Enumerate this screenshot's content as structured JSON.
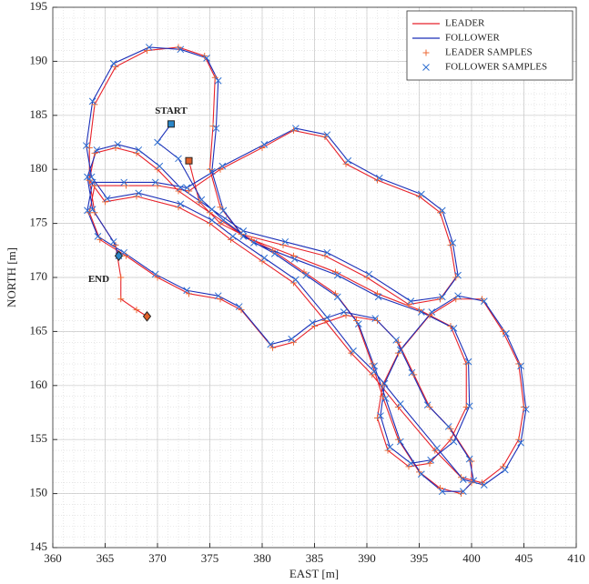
{
  "chart_data": {
    "type": "line",
    "xlabel": "EAST [m]",
    "ylabel": "NORTH [m]",
    "xlim": [
      360,
      410
    ],
    "ylim": [
      145,
      195
    ],
    "xticks": [
      360,
      365,
      370,
      375,
      380,
      385,
      390,
      395,
      400,
      405,
      410
    ],
    "yticks": [
      145,
      150,
      155,
      160,
      165,
      170,
      175,
      180,
      185,
      190,
      195
    ],
    "grid": true,
    "minor_grid": true,
    "legend": "upper right",
    "series": [
      {
        "name": "LEADER",
        "type": "line",
        "color": "#e8222a",
        "x": [
          373,
          374,
          376,
          379,
          383,
          387,
          391,
          395,
          398,
          399.5,
          399.5,
          398,
          396,
          394,
          392,
          391,
          391.5,
          393,
          396,
          398.5,
          401,
          403,
          404.5,
          405,
          404.5,
          403,
          401,
          399,
          396.5,
          393,
          390.5,
          388.5,
          386,
          383,
          380,
          377,
          375,
          372,
          368,
          365,
          363.5,
          363.5,
          364,
          366,
          369,
          372,
          374.5,
          375.5,
          375.3,
          375,
          376,
          378,
          381,
          384,
          387,
          389,
          390.5,
          391.5,
          393,
          395,
          397,
          399,
          400,
          400,
          398,
          396,
          394.5,
          393,
          391,
          388,
          385,
          383,
          381,
          378,
          376,
          373,
          370,
          367,
          364.5,
          363.5,
          364,
          367,
          370,
          373,
          376,
          380,
          383,
          386,
          388,
          391,
          395,
          397,
          398,
          398.5,
          397,
          394,
          390,
          386,
          382,
          378,
          375,
          372,
          370,
          368,
          366,
          364,
          363.5,
          364,
          366,
          366.5,
          366.5,
          368,
          369
        ],
        "values": [
          180.8,
          177,
          175,
          173.5,
          172,
          170.5,
          168.5,
          167,
          165.5,
          162,
          158,
          155,
          152.8,
          152.5,
          154,
          157,
          160,
          163,
          166.5,
          168,
          168,
          165,
          162,
          158,
          155,
          152.5,
          151,
          151.5,
          154,
          158,
          161,
          163,
          166,
          169.5,
          171.5,
          173.5,
          175,
          176.5,
          177.5,
          177,
          179,
          182,
          186,
          189.5,
          191,
          191.3,
          190.5,
          188.5,
          184,
          180,
          176.5,
          174,
          172.5,
          170.5,
          168.5,
          166,
          162,
          159,
          155,
          152,
          150.5,
          150,
          151,
          153,
          156,
          158,
          161,
          164,
          166,
          166.5,
          165.5,
          164,
          163.5,
          167,
          168,
          168.5,
          170,
          172,
          173.5,
          176,
          178.5,
          178.5,
          178.5,
          178,
          180,
          182,
          183.6,
          183,
          180.5,
          179,
          177.5,
          176,
          173,
          170,
          168,
          167.5,
          170,
          172,
          173,
          174,
          176,
          178,
          180,
          181.5,
          182,
          181.5,
          179,
          176,
          173,
          170,
          168,
          167,
          166.4
        ]
      },
      {
        "name": "FOLLOWER",
        "type": "line",
        "color": "#1a2fb8",
        "x": [
          371.3,
          370,
          372,
          374.2,
          376.3,
          379.2,
          383.1,
          387.2,
          391.1,
          395.2,
          398.3,
          399.7,
          399.8,
          398.3,
          396.1,
          394.2,
          392.2,
          391.3,
          391.7,
          393.2,
          396.2,
          398.7,
          401.2,
          403.3,
          404.7,
          405.2,
          404.7,
          403.2,
          401.2,
          399.2,
          396.7,
          393.2,
          390.7,
          388.7,
          386.2,
          383.2,
          380.2,
          377.2,
          375.2,
          372.2,
          368.2,
          365.2,
          363.7,
          363.2,
          363.8,
          365.8,
          369.2,
          372.2,
          374.7,
          375.8,
          375.6,
          375.2,
          376.3,
          378.2,
          381.2,
          384.2,
          387.2,
          389.2,
          390.7,
          391.8,
          393.2,
          395.2,
          397.2,
          399.2,
          400.2,
          399.8,
          397.8,
          395.8,
          394.3,
          392.8,
          390.8,
          387.8,
          384.8,
          382.8,
          380.8,
          377.8,
          375.8,
          372.8,
          369.8,
          366.8,
          364.3,
          363.3,
          363.8,
          366.8,
          369.8,
          372.8,
          376.2,
          380.2,
          383.2,
          386.2,
          388.2,
          391.2,
          395.2,
          397.2,
          398.2,
          398.7,
          397.2,
          394.2,
          390.2,
          386.2,
          382.2,
          378.2,
          375.2,
          372.2,
          370.2,
          368.2,
          366.2,
          364.2,
          363.3,
          363.8,
          365.8,
          366.3
        ],
        "values": [
          184.2,
          182.5,
          181,
          177.2,
          175.3,
          173.2,
          171.7,
          170.2,
          168.2,
          166.8,
          165.3,
          162.2,
          158.1,
          154.8,
          153.1,
          152.8,
          154.3,
          157.2,
          160.2,
          163.3,
          166.8,
          168.3,
          167.8,
          164.8,
          161.8,
          157.8,
          154.7,
          152.2,
          150.8,
          151.3,
          154.2,
          158.3,
          161.3,
          163.2,
          166.3,
          169.8,
          171.8,
          173.8,
          175.3,
          176.8,
          177.8,
          177.3,
          179.3,
          182.2,
          186.3,
          189.8,
          191.3,
          191.1,
          190.3,
          188.2,
          183.8,
          179.8,
          176.2,
          173.8,
          172.2,
          170.2,
          168.2,
          165.7,
          161.8,
          158.8,
          154.8,
          151.8,
          150.2,
          150.2,
          151.2,
          153.2,
          156.2,
          158.2,
          161.2,
          164.2,
          166.2,
          166.8,
          165.8,
          164.3,
          163.8,
          167.3,
          168.3,
          168.8,
          170.3,
          172.3,
          173.8,
          176.2,
          178.8,
          178.8,
          178.8,
          178.3,
          180.3,
          182.3,
          183.8,
          183.2,
          180.8,
          179.2,
          177.7,
          176.2,
          173.2,
          170.2,
          168.2,
          167.8,
          170.3,
          172.3,
          173.3,
          174.3,
          176.3,
          178.3,
          180.3,
          181.8,
          182.3,
          181.8,
          179.3,
          176.3,
          173.3,
          172
        ]
      },
      {
        "name": "LEADER SAMPLES",
        "type": "scatter",
        "marker": "+",
        "color": "#ec6a35",
        "x": [
          373,
          374,
          376,
          379,
          383,
          387,
          391,
          395,
          398,
          399.5,
          399.5,
          398,
          396,
          394,
          392,
          391,
          391.5,
          393,
          396,
          398.5,
          401,
          403,
          404.5,
          405,
          404.5,
          403,
          401,
          399,
          396.5,
          393,
          390.5,
          388.5,
          386,
          383,
          380,
          377,
          375,
          372,
          368,
          365,
          363.5,
          363.5,
          364,
          366,
          369,
          372,
          374.5,
          375.5,
          375.3,
          375,
          376,
          378,
          381,
          384,
          387,
          389,
          390.5,
          391.5,
          393,
          395,
          397,
          399,
          400,
          400,
          398,
          396,
          394.5,
          393,
          391,
          388,
          385,
          383,
          381,
          378,
          376,
          373,
          370,
          367,
          364.5,
          363.5,
          364,
          367,
          370,
          373,
          376,
          380,
          383,
          386,
          388,
          391,
          395,
          397,
          398,
          398.5,
          397,
          394,
          390,
          386,
          382,
          378,
          375,
          372,
          370,
          368,
          366,
          364,
          363.5,
          364,
          366,
          366.5,
          366.5,
          368,
          369
        ],
        "values": [
          180.8,
          177,
          175,
          173.5,
          172,
          170.5,
          168.5,
          167,
          165.5,
          162,
          158,
          155,
          152.8,
          152.5,
          154,
          157,
          160,
          163,
          166.5,
          168,
          168,
          165,
          162,
          158,
          155,
          152.5,
          151,
          151.5,
          154,
          158,
          161,
          163,
          166,
          169.5,
          171.5,
          173.5,
          175,
          176.5,
          177.5,
          177,
          179,
          182,
          186,
          189.5,
          191,
          191.3,
          190.5,
          188.5,
          184,
          180,
          176.5,
          174,
          172.5,
          170.5,
          168.5,
          166,
          162,
          159,
          155,
          152,
          150.5,
          150,
          151,
          153,
          156,
          158,
          161,
          164,
          166,
          166.5,
          165.5,
          164,
          163.5,
          167,
          168,
          168.5,
          170,
          172,
          173.5,
          176,
          178.5,
          178.5,
          178.5,
          178,
          180,
          182,
          183.6,
          183,
          180.5,
          179,
          177.5,
          176,
          173,
          170,
          168,
          167.5,
          170,
          172,
          173,
          174,
          176,
          178,
          180,
          181.5,
          182,
          181.5,
          179,
          176,
          173,
          170,
          168,
          167,
          166.4
        ]
      },
      {
        "name": "FOLLOWER SAMPLES",
        "type": "scatter",
        "marker": "x",
        "color": "#2f6fd0",
        "x": [
          371.3,
          370,
          372,
          374.2,
          376.3,
          379.2,
          383.1,
          387.2,
          391.1,
          395.2,
          398.3,
          399.7,
          399.8,
          398.3,
          396.1,
          394.2,
          392.2,
          391.3,
          391.7,
          393.2,
          396.2,
          398.7,
          401.2,
          403.3,
          404.7,
          405.2,
          404.7,
          403.2,
          401.2,
          399.2,
          396.7,
          393.2,
          390.7,
          388.7,
          386.2,
          383.2,
          380.2,
          377.2,
          375.2,
          372.2,
          368.2,
          365.2,
          363.7,
          363.2,
          363.8,
          365.8,
          369.2,
          372.2,
          374.7,
          375.8,
          375.6,
          375.2,
          376.3,
          378.2,
          381.2,
          384.2,
          387.2,
          389.2,
          390.7,
          391.8,
          393.2,
          395.2,
          397.2,
          399.2,
          400.2,
          399.8,
          397.8,
          395.8,
          394.3,
          392.8,
          390.8,
          387.8,
          384.8,
          382.8,
          380.8,
          377.8,
          375.8,
          372.8,
          369.8,
          366.8,
          364.3,
          363.3,
          363.8,
          366.8,
          369.8,
          372.8,
          376.2,
          380.2,
          383.2,
          386.2,
          388.2,
          391.2,
          395.2,
          397.2,
          398.2,
          398.7,
          397.2,
          394.2,
          390.2,
          386.2,
          382.2,
          378.2,
          375.2,
          372.2,
          370.2,
          368.2,
          366.2,
          364.2,
          363.3,
          363.8,
          365.8,
          366.3
        ],
        "values": [
          184.2,
          182.5,
          181,
          177.2,
          175.3,
          173.2,
          171.7,
          170.2,
          168.2,
          166.8,
          165.3,
          162.2,
          158.1,
          154.8,
          153.1,
          152.8,
          154.3,
          157.2,
          160.2,
          163.3,
          166.8,
          168.3,
          167.8,
          164.8,
          161.8,
          157.8,
          154.7,
          152.2,
          150.8,
          151.3,
          154.2,
          158.3,
          161.3,
          163.2,
          166.3,
          169.8,
          171.8,
          173.8,
          175.3,
          176.8,
          177.8,
          177.3,
          179.3,
          182.2,
          186.3,
          189.8,
          191.3,
          191.1,
          190.3,
          188.2,
          183.8,
          179.8,
          176.2,
          173.8,
          172.2,
          170.2,
          168.2,
          165.7,
          161.8,
          158.8,
          154.8,
          151.8,
          150.2,
          150.2,
          151.2,
          153.2,
          156.2,
          158.2,
          161.2,
          164.2,
          166.2,
          166.8,
          165.8,
          164.3,
          163.8,
          167.3,
          168.3,
          168.8,
          170.3,
          172.3,
          173.8,
          176.2,
          178.8,
          178.8,
          178.8,
          178.3,
          180.3,
          182.3,
          183.8,
          183.2,
          180.8,
          179.2,
          177.7,
          176.2,
          173.2,
          170.2,
          168.2,
          167.8,
          170.3,
          172.3,
          173.3,
          174.3,
          176.3,
          178.3,
          180.3,
          181.8,
          182.3,
          181.8,
          179.3,
          176.3,
          173.3,
          172
        ]
      }
    ],
    "start": {
      "label": "START",
      "shape": "square",
      "leader": {
        "x": 373,
        "y": 180.8,
        "color": "#e0602a"
      },
      "follower": {
        "x": 371.3,
        "y": 184.2,
        "color": "#2a86c8"
      }
    },
    "end": {
      "label": "END",
      "shape": "diamond",
      "leader": {
        "x": 369,
        "y": 166.4,
        "color": "#e0602a"
      },
      "follower": {
        "x": 366.3,
        "y": 172,
        "color": "#2a86c8"
      }
    }
  }
}
